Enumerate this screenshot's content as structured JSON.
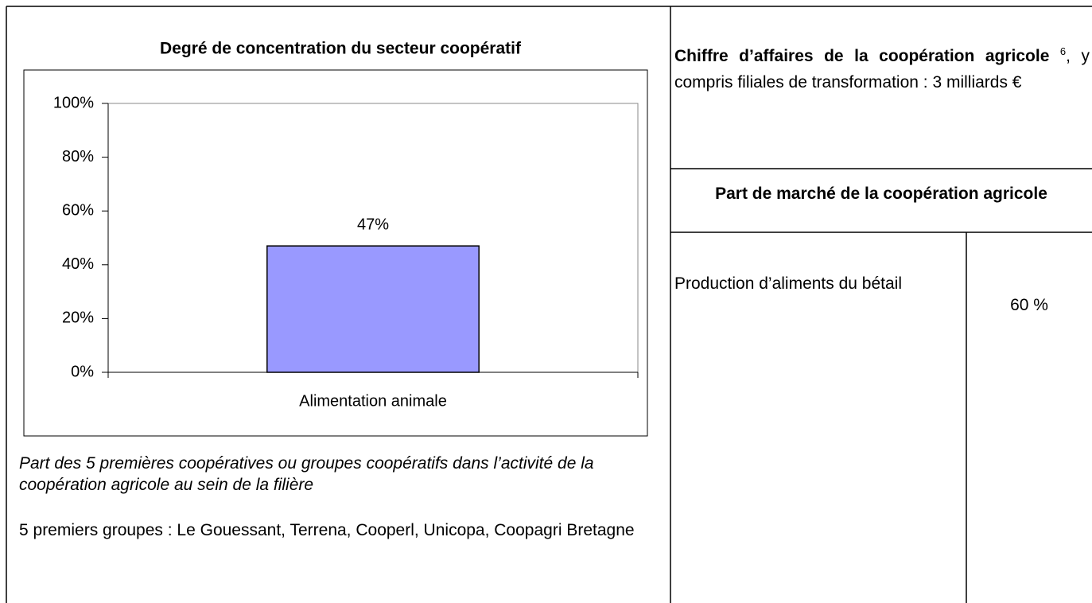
{
  "chart_data": {
    "type": "bar",
    "title": "Degré de concentration du secteur coopératif",
    "categories": [
      "Alimentation animale"
    ],
    "values": [
      47
    ],
    "value_labels": [
      "47%"
    ],
    "color": "#9999ff",
    "ylim": [
      0,
      100
    ],
    "yticks": [
      {
        "value": 0,
        "label": "0%"
      },
      {
        "value": 20,
        "label": "20%"
      },
      {
        "value": 40,
        "label": "40%"
      },
      {
        "value": 60,
        "label": "60%"
      },
      {
        "value": 80,
        "label": "80%"
      },
      {
        "value": 100,
        "label": "100%"
      }
    ]
  },
  "left": {
    "caption": "Part des 5 premières coopératives ou groupes coopératifs dans l’activité de la coopération agricole au sein de la filière",
    "groups": "5 premiers groupes : Le Gouessant, Terrena, Cooperl, Unicopa, Coopagri Bretagne"
  },
  "right": {
    "revenue": {
      "bold": "Chiffre d’affaires de la coopération agricole",
      "note": "6",
      "rest": ", y compris filiales de transformation : 3 milliards €"
    },
    "market_share": {
      "heading": "Part de marché de la coopération agricole",
      "rows": [
        [
          "Production d’aliments du bétail",
          "60 %"
        ]
      ]
    }
  }
}
